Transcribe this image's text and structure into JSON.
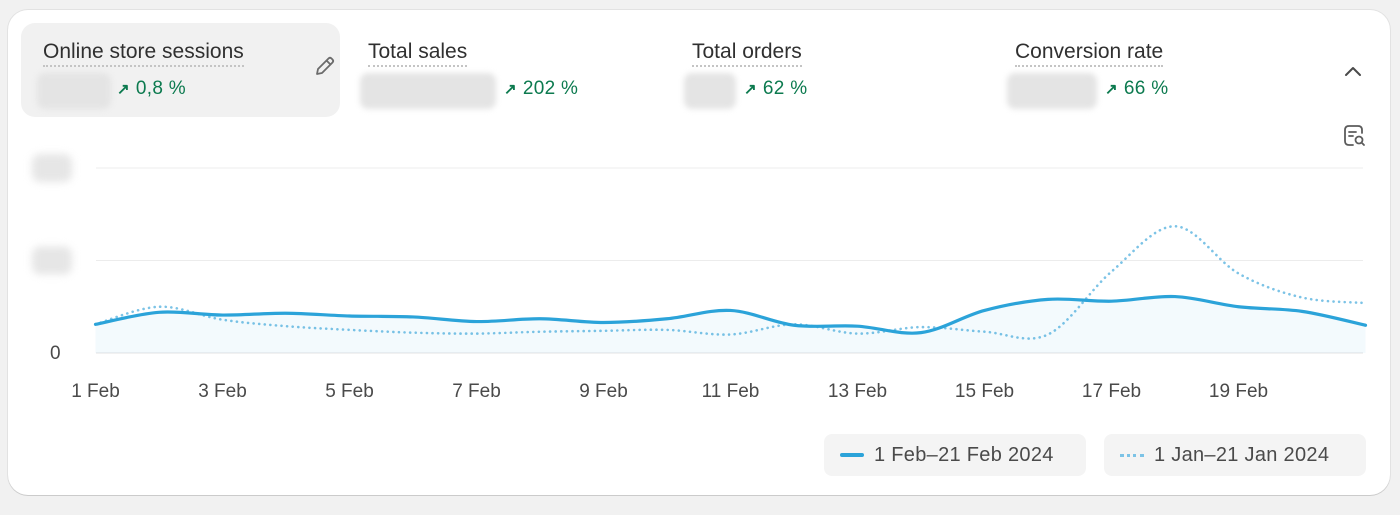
{
  "metrics": [
    {
      "label": "Online store sessions",
      "change": "0,8 %"
    },
    {
      "label": "Total sales",
      "change": "202 %"
    },
    {
      "label": "Total orders",
      "change": "62 %"
    },
    {
      "label": "Conversion rate",
      "change": "66 %"
    }
  ],
  "icons": {
    "edit": "pencil-icon",
    "collapse": "chevron-up-icon",
    "zoom": "chart-zoom-icon",
    "trend": "arrow-up-right-icon"
  },
  "colors": {
    "current": "#2ba3d9",
    "previous": "#7cc3e6",
    "positive_change": "#0c7a4f"
  },
  "chart_data": {
    "type": "line",
    "x_labels": [
      "1 Feb",
      "3 Feb",
      "5 Feb",
      "7 Feb",
      "9 Feb",
      "11 Feb",
      "13 Feb",
      "15 Feb",
      "17 Feb",
      "19 Feb"
    ],
    "y_tick_visible": "0",
    "ylim": [
      0,
      2
    ],
    "grid": true,
    "legend_position": "bottom-right",
    "series": [
      {
        "name": "1 Feb–21 Feb 2024",
        "style": "solid",
        "values": [
          0.31,
          0.44,
          0.41,
          0.43,
          0.4,
          0.39,
          0.34,
          0.37,
          0.33,
          0.37,
          0.46,
          0.3,
          0.29,
          0.22,
          0.46,
          0.58,
          0.56,
          0.61,
          0.5,
          0.45,
          0.3
        ]
      },
      {
        "name": "1 Jan–21 Jan 2024",
        "style": "dotted",
        "values": [
          0.31,
          0.5,
          0.36,
          0.29,
          0.25,
          0.22,
          0.21,
          0.23,
          0.24,
          0.25,
          0.2,
          0.31,
          0.21,
          0.28,
          0.23,
          0.2,
          0.88,
          1.37,
          0.86,
          0.6,
          0.54
        ]
      }
    ]
  }
}
